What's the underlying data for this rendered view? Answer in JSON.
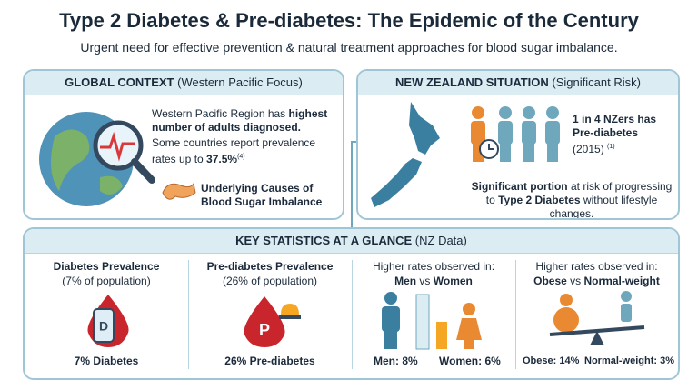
{
  "header": {
    "title": "Type 2 Diabetes & Pre-diabetes: The Epidemic of the Century",
    "subtitle": "Urgent need for effective prevention & natural treatment approaches for blood sugar imbalance."
  },
  "global": {
    "heading": "GLOBAL CONTEXT",
    "heading_note": "(Western Pacific Focus)",
    "line1": "Western Pacific Region has ",
    "line1_bold": "highest number of adults diagnosed.",
    "line2": "Some countries report prevalence rates up to ",
    "line2_bold": "37.5%",
    "line2_ref": "(4)",
    "causes": "Underlying Causes of Blood Sugar Imbalance"
  },
  "nz": {
    "heading": "NEW ZEALAND SITUATION",
    "heading_note": "(Significant Risk)",
    "stat_bold": "1 in 4 NZers has Pre-diabetes",
    "stat_year": "(2015)",
    "stat_ref": "(1)",
    "risk_bold1": "Significant portion",
    "risk_text1": " at risk of progressing to ",
    "risk_bold2": "Type 2 Diabetes",
    "risk_text2": " without lifestyle changes."
  },
  "stats": {
    "heading": "KEY STATISTICS AT A GLANCE",
    "heading_note": "(NZ Data)",
    "columns": [
      {
        "title": "Diabetes Prevalence",
        "note": "(7% of population)",
        "icon_letter": "D",
        "caption": "7% Diabetes"
      },
      {
        "title": "Pre-diabetes Prevalence",
        "note": "(26% of population)",
        "icon_letter": "P",
        "caption": "26% Pre-diabetes"
      },
      {
        "intro": "Higher rates observed in:",
        "group_a": "Men",
        "vs": " vs ",
        "group_b": "Women",
        "caption_a": "Men: 8%",
        "caption_b": "Women: 6%"
      },
      {
        "intro": "Higher rates observed in:",
        "group_a": "Obese",
        "vs": " vs ",
        "group_b": "Normal-weight",
        "caption_a": "Obese: 14%",
        "caption_b": "Normal-weight: 3%"
      }
    ]
  }
}
